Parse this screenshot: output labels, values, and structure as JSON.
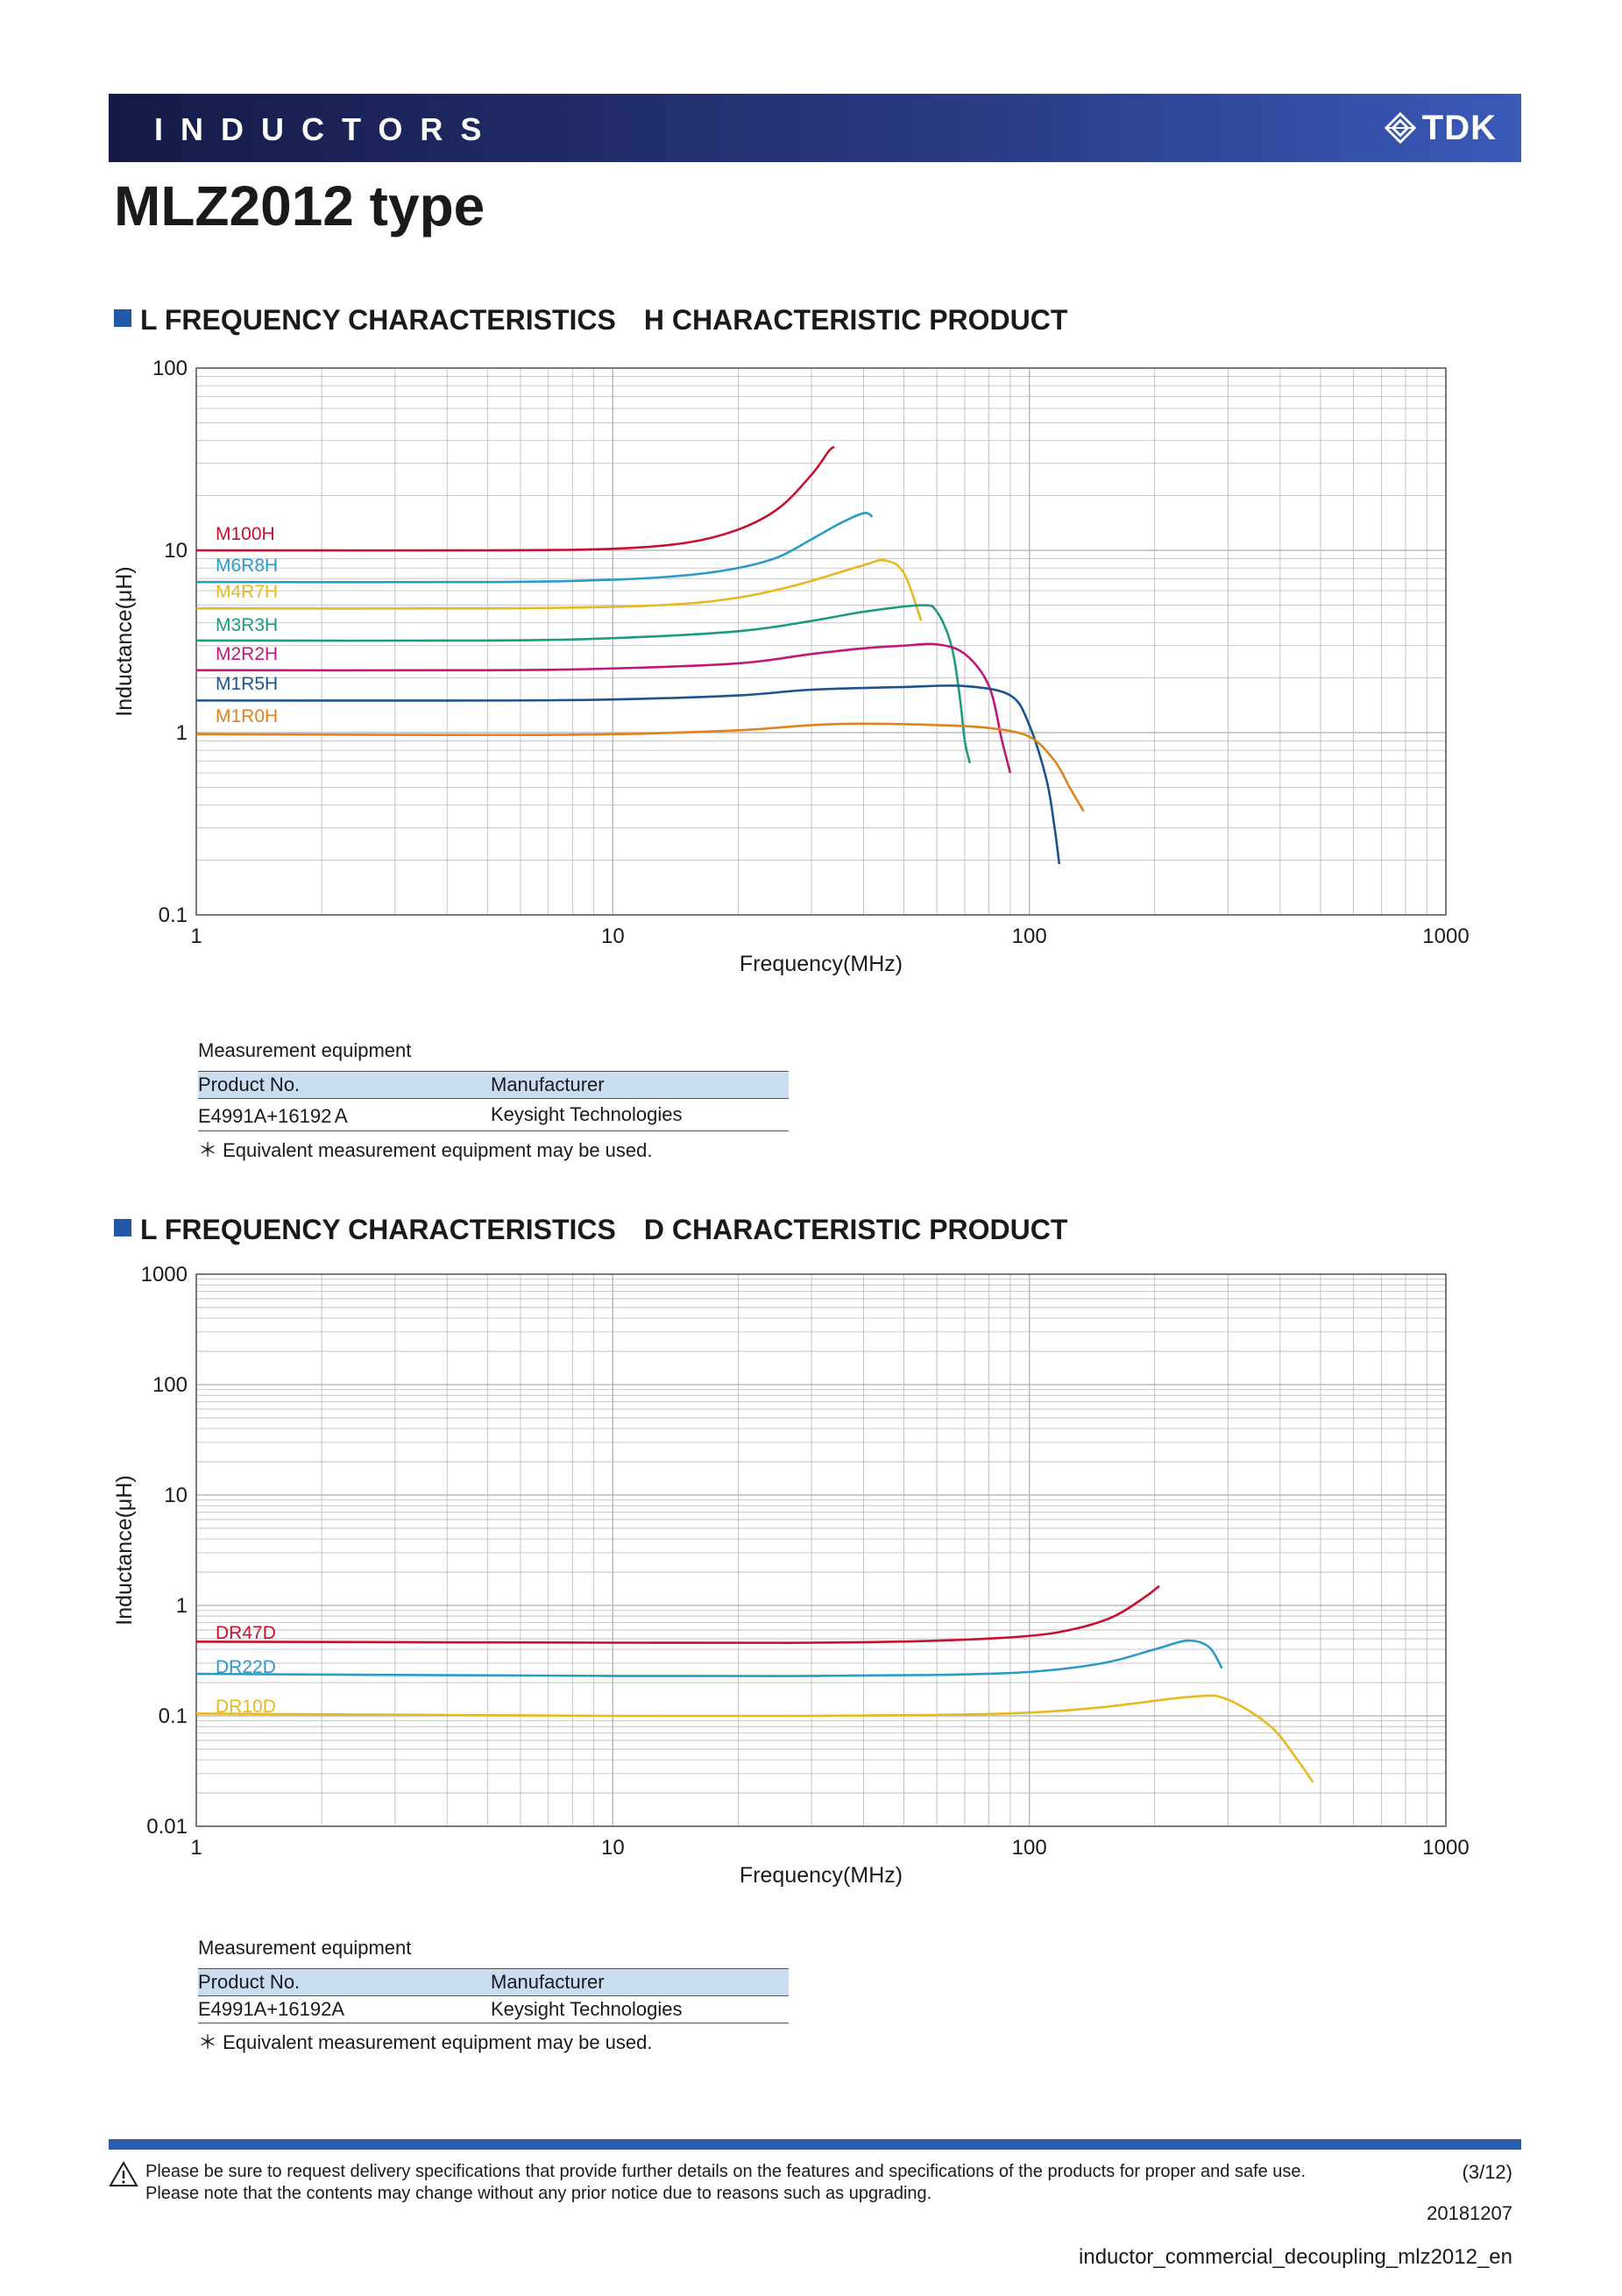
{
  "header": {
    "section": "INDUCTORS",
    "brand": "TDK"
  },
  "page_title": "MLZ2012 type",
  "sections": [
    {
      "title": "L FREQUENCY CHARACTERISTICS　H CHARACTERISTIC PRODUCT"
    },
    {
      "title": "L FREQUENCY CHARACTERISTICS　D CHARACTERISTIC PRODUCT"
    }
  ],
  "measurement": [
    {
      "label": "Measurement equipment",
      "col1": "Product No.",
      "col2": "Manufacturer",
      "product": "E4991A+16192Ａ",
      "manufacturer": "Keysight Technologies",
      "note": "＊ Equivalent measurement equipment may be used."
    },
    {
      "label": "Measurement equipment",
      "col1": "Product No.",
      "col2": "Manufacturer",
      "product": "E4991A+16192A",
      "manufacturer": "Keysight Technologies",
      "note": "＊ Equivalent measurement equipment may be used."
    }
  ],
  "chart_data": [
    {
      "type": "line",
      "xlabel": "Frequency(MHz)",
      "ylabel": "Inductance(μH)",
      "xscale": "log",
      "yscale": "log",
      "xlim": [
        1,
        1000
      ],
      "ylim": [
        0.1,
        100
      ],
      "xticks": [
        "1",
        "10",
        "100",
        "1000"
      ],
      "yticks": [
        "0.1",
        "1",
        "10",
        "100"
      ],
      "grid": true,
      "series": [
        {
          "name": "M100H",
          "color": "#c8102e",
          "x": [
            1,
            5,
            10,
            15,
            20,
            25,
            30,
            33,
            34
          ],
          "y": [
            10,
            10,
            10.2,
            11,
            13,
            17,
            26,
            35,
            37
          ]
        },
        {
          "name": "M6R8H",
          "color": "#2a9bc8",
          "x": [
            1,
            5,
            10,
            15,
            20,
            25,
            30,
            35,
            40,
            42
          ],
          "y": [
            6.7,
            6.7,
            6.9,
            7.3,
            8,
            9.2,
            11.5,
            14,
            16,
            15.3
          ]
        },
        {
          "name": "M4R7H",
          "color": "#e8b820",
          "x": [
            1,
            5,
            10,
            15,
            20,
            25,
            30,
            40,
            45,
            50,
            55
          ],
          "y": [
            4.8,
            4.8,
            4.9,
            5.1,
            5.5,
            6.1,
            6.8,
            8.3,
            8.8,
            7.5,
            4.1
          ]
        },
        {
          "name": "M3R3H",
          "color": "#1f9a82",
          "x": [
            1,
            5,
            10,
            20,
            30,
            40,
            55,
            60,
            65,
            68,
            70,
            72
          ],
          "y": [
            3.2,
            3.2,
            3.3,
            3.6,
            4.1,
            4.6,
            5,
            4.6,
            3,
            1.6,
            0.9,
            0.68
          ]
        },
        {
          "name": "M2R2H",
          "color": "#c01878",
          "x": [
            1,
            5,
            10,
            20,
            30,
            40,
            50,
            60,
            70,
            80,
            86,
            90
          ],
          "y": [
            2.2,
            2.2,
            2.25,
            2.4,
            2.7,
            2.9,
            3,
            3.05,
            2.7,
            1.8,
            0.9,
            0.6
          ]
        },
        {
          "name": "M1R5H",
          "color": "#1a5390",
          "x": [
            1,
            5,
            10,
            20,
            30,
            50,
            70,
            90,
            100,
            110,
            115,
            118
          ],
          "y": [
            1.5,
            1.5,
            1.52,
            1.6,
            1.72,
            1.78,
            1.8,
            1.6,
            1.1,
            0.55,
            0.3,
            0.19
          ]
        },
        {
          "name": "M1R0H",
          "color": "#e0821e",
          "x": [
            1,
            5,
            10,
            20,
            30,
            40,
            60,
            80,
            100,
            115,
            125,
            135
          ],
          "y": [
            0.98,
            0.97,
            0.98,
            1.03,
            1.1,
            1.12,
            1.1,
            1.06,
            0.95,
            0.7,
            0.5,
            0.37
          ]
        }
      ]
    },
    {
      "type": "line",
      "xlabel": "Frequency(MHz)",
      "ylabel": "Inductance(μH)",
      "xscale": "log",
      "yscale": "log",
      "xlim": [
        1,
        1000
      ],
      "ylim": [
        0.01,
        1000
      ],
      "xticks": [
        "1",
        "10",
        "100",
        "1000"
      ],
      "yticks": [
        "0.01",
        "0.1",
        "1",
        "10",
        "100",
        "1000"
      ],
      "grid": true,
      "series": [
        {
          "name": "DR47D",
          "color": "#c8102e",
          "x": [
            1,
            10,
            30,
            60,
            100,
            130,
            160,
            190,
            205
          ],
          "y": [
            0.47,
            0.46,
            0.46,
            0.48,
            0.53,
            0.62,
            0.8,
            1.2,
            1.5
          ]
        },
        {
          "name": "DR22D",
          "color": "#2a9bc8",
          "x": [
            1,
            10,
            30,
            60,
            100,
            150,
            200,
            240,
            270,
            290
          ],
          "y": [
            0.24,
            0.23,
            0.23,
            0.235,
            0.25,
            0.3,
            0.4,
            0.48,
            0.42,
            0.27
          ]
        },
        {
          "name": "DR10D",
          "color": "#e8b820",
          "x": [
            1,
            10,
            30,
            60,
            100,
            150,
            250,
            300,
            380,
            440,
            480
          ],
          "y": [
            0.105,
            0.1,
            0.1,
            0.102,
            0.107,
            0.12,
            0.15,
            0.14,
            0.08,
            0.04,
            0.025
          ]
        }
      ]
    }
  ],
  "footer": {
    "notice_line1": "Please be sure to request delivery specifications that provide further details on the features and specifications of the products for proper and safe use.",
    "notice_line2": "Please note that the contents may change without any prior notice due to reasons such as upgrading.",
    "page": "(3/12)",
    "date": "20181207",
    "doc_id": "inductor_commercial_decoupling_mlz2012_en"
  },
  "colors": {
    "header_dark": "#151a46",
    "header_light": "#3a5ab8",
    "accent": "#2358a8",
    "table_header": "#c9dcf0",
    "grid": "#b8b8b8"
  }
}
